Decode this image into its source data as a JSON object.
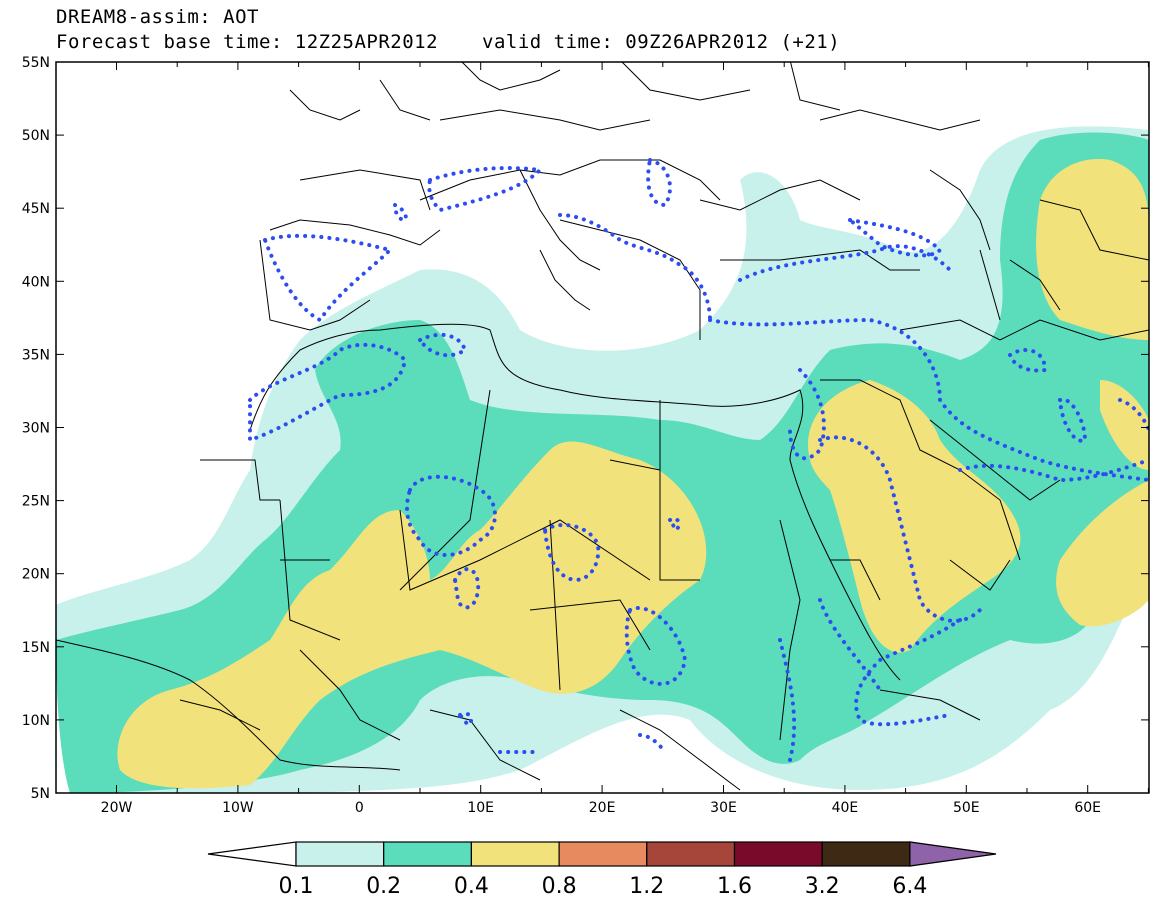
{
  "header": {
    "title": "DREAM8-assim: AOT",
    "base_time": "Forecast base time: 12Z25APR2012",
    "valid_time": "valid time: 09Z26APR2012 (+21)"
  },
  "map": {
    "lat_labels": [
      "55N",
      "50N",
      "45N",
      "40N",
      "35N",
      "30N",
      "25N",
      "20N",
      "15N",
      "10N",
      "5N"
    ],
    "lon_labels": [
      "20W",
      "10W",
      "0",
      "10E",
      "20E",
      "30E",
      "40E",
      "50E",
      "60E"
    ],
    "colors": {
      "level1": "#c7f1ea",
      "level2": "#5bdcbb",
      "level3": "#f2e27b",
      "contour": "#2d4df2",
      "border": "#000000"
    }
  },
  "colorbar": {
    "labels": [
      "0.1",
      "0.2",
      "0.4",
      "0.8",
      "1.2",
      "1.6",
      "3.2",
      "6.4"
    ],
    "colors": [
      "#ffffff",
      "#c7f1ea",
      "#5bdcbb",
      "#f2e27b",
      "#e88a5f",
      "#a6463a",
      "#7a0a2a",
      "#3e2a14",
      "#8f63a9"
    ]
  }
}
